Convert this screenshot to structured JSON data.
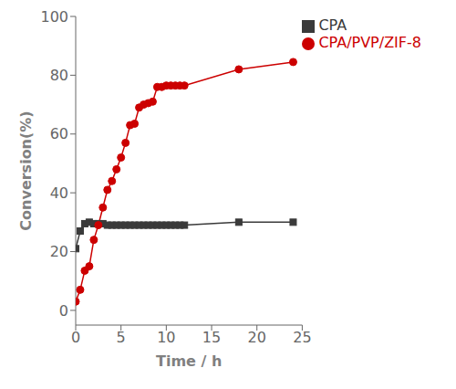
{
  "chart_data": {
    "type": "line",
    "xlabel": "Time / h",
    "ylabel": "Conversion(%)",
    "x": [
      0.0,
      0.5,
      1.0,
      1.5,
      2.0,
      2.5,
      3.0,
      3.5,
      4.0,
      4.5,
      5.0,
      5.5,
      6.0,
      6.5,
      7.0,
      7.5,
      8.0,
      8.5,
      9.0,
      9.5,
      10.0,
      10.5,
      11.0,
      11.5,
      12.0,
      18.0,
      24.0
    ],
    "series": [
      {
        "name": "CPA",
        "color": "#3a3a3a",
        "marker": "square",
        "values": [
          21.0,
          27.0,
          29.5,
          30.0,
          29.5,
          29.5,
          29.5,
          29.0,
          29.0,
          29.0,
          29.0,
          29.0,
          29.0,
          29.0,
          29.0,
          29.0,
          29.0,
          29.0,
          29.0,
          29.0,
          29.0,
          29.0,
          29.0,
          29.0,
          29.0,
          30.0,
          30.0
        ]
      },
      {
        "name": "CPA/PVP/ZIF-8",
        "color": "#cc0000",
        "marker": "circle",
        "values": [
          3.0,
          7.0,
          13.5,
          15.0,
          24.0,
          29.0,
          35.0,
          41.0,
          44.0,
          48.0,
          52.0,
          57.0,
          63.0,
          63.5,
          69.0,
          70.0,
          70.5,
          71.0,
          76.0,
          76.0,
          76.5,
          76.5,
          76.5,
          76.5,
          76.5,
          82.0,
          84.5
        ]
      }
    ],
    "xlim": [
      0,
      25
    ],
    "ylim": [
      -5,
      100
    ],
    "xticks": [
      0,
      5,
      10,
      15,
      20,
      25
    ],
    "yticks": [
      0,
      20,
      40,
      60,
      80,
      100
    ],
    "grid": false,
    "legend": "upper right"
  }
}
